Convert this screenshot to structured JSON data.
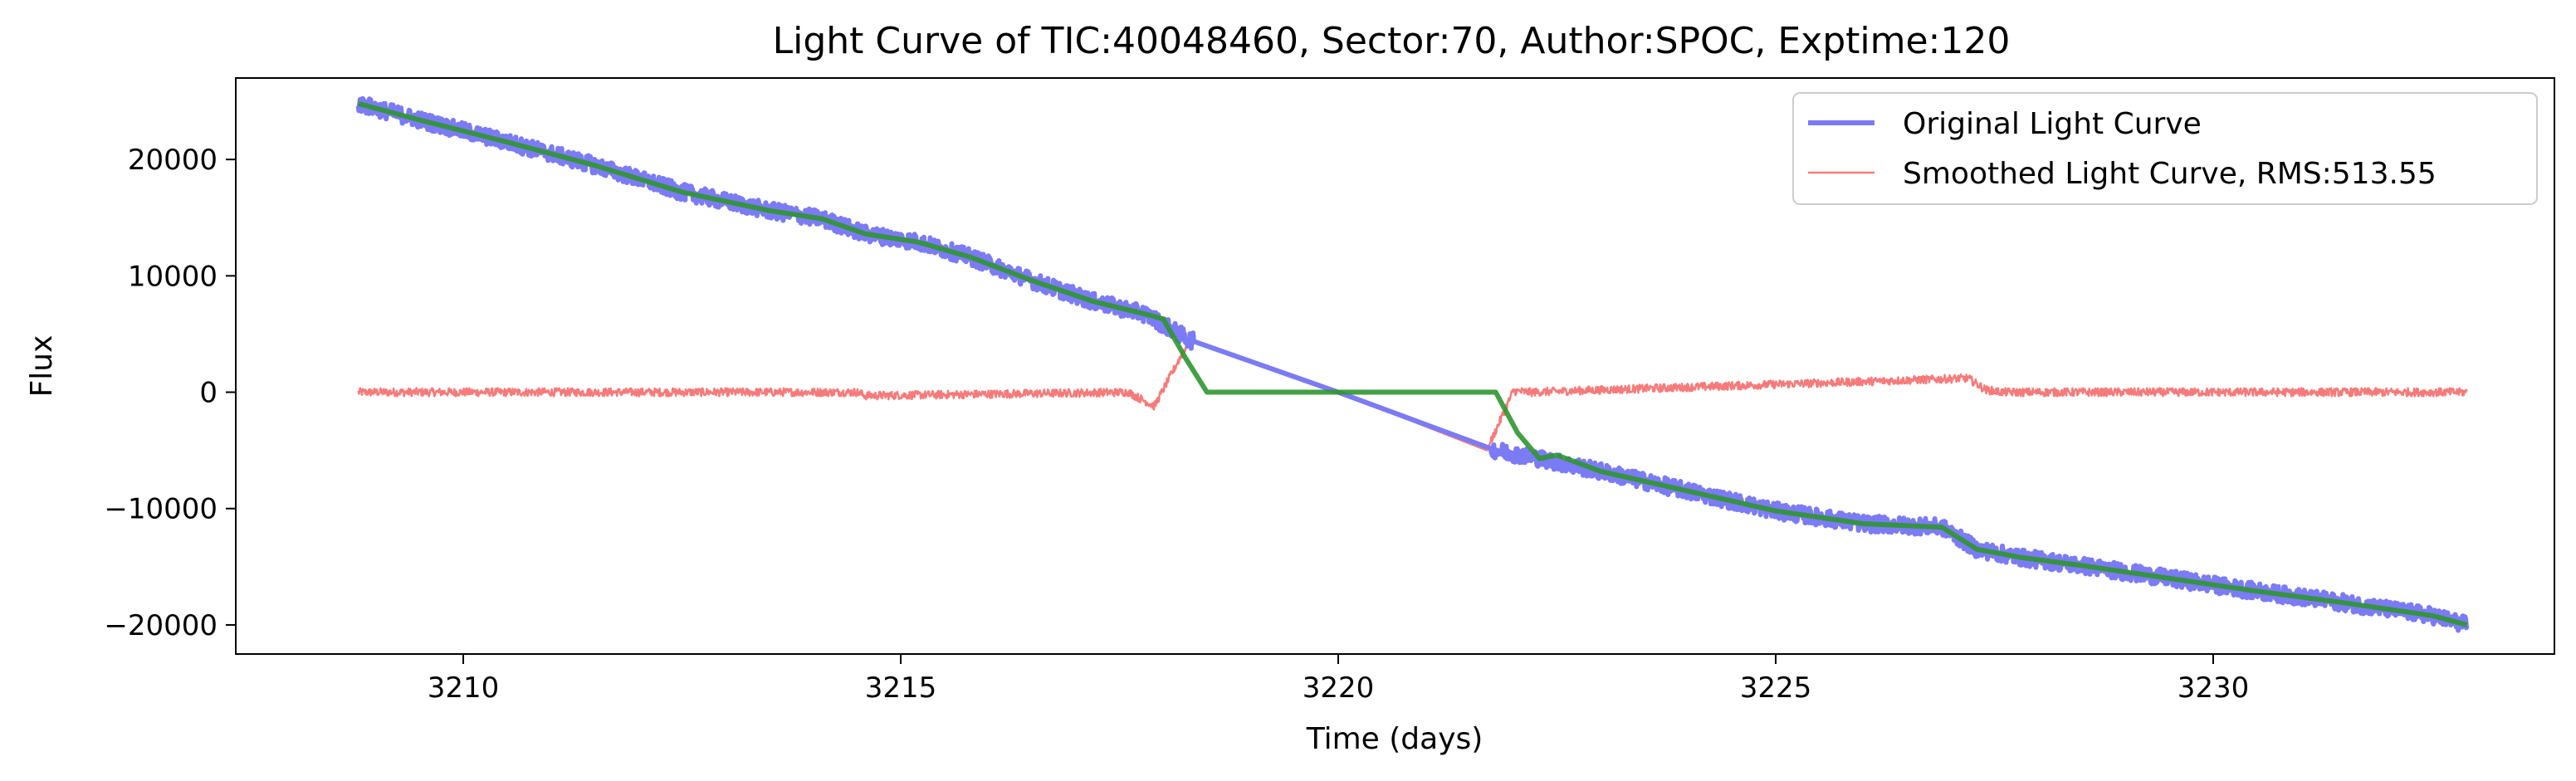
{
  "chart_data": {
    "type": "line",
    "title": "Light Curve of TIC:40048460, Sector:70, Author:SPOC, Exptime:120",
    "xlabel": "Time (days)",
    "ylabel": "Flux",
    "xlim": [
      3207.4,
      3233.9
    ],
    "ylim": [
      -22500,
      27000
    ],
    "xticks": [
      3210,
      3215,
      3220,
      3225,
      3230
    ],
    "yticks": [
      -20000,
      -10000,
      0,
      10000,
      20000
    ],
    "xtick_labels": [
      "3210",
      "3215",
      "3220",
      "3225",
      "3230"
    ],
    "ytick_labels": [
      "−20000",
      "−10000",
      "0",
      "10000",
      "20000"
    ],
    "grid": false,
    "legend_position": "top-right",
    "series": [
      {
        "name": "Original Light Curve",
        "color": "#7b7bf5",
        "x": [
          3208.8,
          3209.5,
          3210.5,
          3211.5,
          3212.5,
          3213.5,
          3214.1,
          3214.6,
          3215.2,
          3215.8,
          3216.5,
          3217.2,
          3217.8,
          3218.3,
          3220.0,
          3221.8,
          3222.3,
          3223.0,
          3224.0,
          3225.0,
          3226.0,
          3226.9,
          3227.3,
          3227.8,
          3228.5,
          3229.5,
          3230.5,
          3231.5,
          3232.5,
          3232.9
        ],
        "y": [
          24800,
          23400,
          21500,
          19500,
          17200,
          15600,
          14900,
          13600,
          12900,
          11600,
          9600,
          7800,
          6700,
          4500,
          0,
          -5000,
          -5700,
          -6800,
          -8500,
          -10200,
          -11300,
          -11600,
          -13500,
          -14200,
          -14900,
          -16000,
          -17100,
          -18100,
          -19200,
          -20000
        ],
        "noise": 700
      },
      {
        "name": "Smoothed Light Curve, RMS:513.55",
        "color": "#f77a7a",
        "x": [
          3208.8,
          3214.5,
          3214.6,
          3217.6,
          3217.9,
          3218.3,
          3220.0,
          3221.7,
          3222.0,
          3222.2,
          3227.2,
          3227.4,
          3227.6,
          3232.9
        ],
        "y": [
          0,
          0,
          -300,
          0,
          -1200,
          4500,
          0,
          -5000,
          100,
          0,
          1200,
          200,
          0,
          0
        ],
        "noise": 350
      },
      {
        "name": "",
        "color": "#2f962f",
        "x": [
          3208.8,
          3209.5,
          3210.5,
          3211.5,
          3212.5,
          3213.5,
          3214.1,
          3214.6,
          3215.2,
          3215.8,
          3216.5,
          3217.2,
          3217.8,
          3218.0,
          3218.25,
          3218.5,
          3221.8,
          3222.05,
          3222.3,
          3222.5,
          3223.0,
          3224.0,
          3225.0,
          3226.0,
          3226.9,
          3227.3,
          3227.8,
          3228.5,
          3229.5,
          3230.5,
          3231.5,
          3232.5,
          3232.9
        ],
        "y": [
          24800,
          23400,
          21500,
          19500,
          17200,
          15600,
          14900,
          13600,
          12900,
          11600,
          9600,
          7800,
          6700,
          6300,
          3000,
          0,
          0,
          -3500,
          -5700,
          -5400,
          -6800,
          -8500,
          -10200,
          -11300,
          -11600,
          -13500,
          -14200,
          -14900,
          -16000,
          -17100,
          -18100,
          -19200,
          -20000
        ]
      }
    ]
  }
}
